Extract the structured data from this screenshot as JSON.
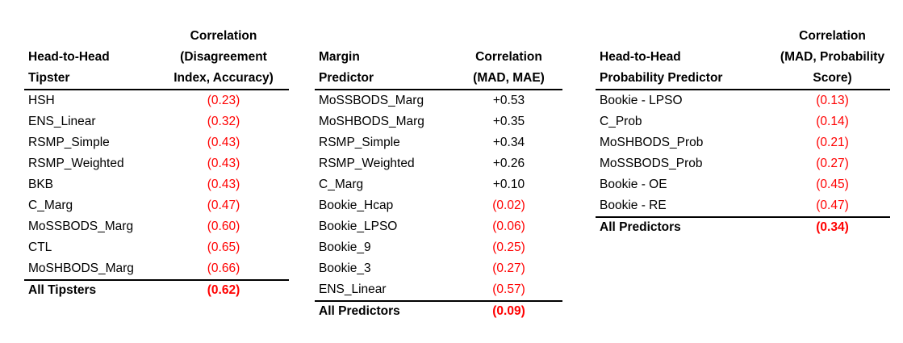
{
  "colors": {
    "text": "#000000",
    "negative_value": "#ff0000",
    "rule": "#000000",
    "background": "#ffffff"
  },
  "tables": [
    {
      "name": "head-to-head-tipster",
      "header": {
        "col1_lines": [
          "Head-to-Head",
          "Tipster"
        ],
        "col2_lines": [
          "Correlation",
          "(Disagreement",
          "Index, Accuracy)"
        ]
      },
      "rows": [
        {
          "label": "HSH",
          "value": "(0.23)",
          "red": true
        },
        {
          "label": "ENS_Linear",
          "value": "(0.32)",
          "red": true
        },
        {
          "label": "RSMP_Simple",
          "value": "(0.43)",
          "red": true
        },
        {
          "label": "RSMP_Weighted",
          "value": "(0.43)",
          "red": true
        },
        {
          "label": "BKB",
          "value": "(0.43)",
          "red": true
        },
        {
          "label": "C_Marg",
          "value": "(0.47)",
          "red": true
        },
        {
          "label": "MoSSBODS_Marg",
          "value": "(0.60)",
          "red": true
        },
        {
          "label": "CTL",
          "value": "(0.65)",
          "red": true
        },
        {
          "label": "MoSHBODS_Marg",
          "value": "(0.66)",
          "red": true
        }
      ],
      "total": {
        "label": "All Tipsters",
        "value": "(0.62)",
        "red": true
      }
    },
    {
      "name": "margin-predictor",
      "header": {
        "col1_lines": [
          "Margin",
          "Predictor"
        ],
        "col2_lines": [
          "Correlation",
          "(MAD, MAE)"
        ]
      },
      "rows": [
        {
          "label": "MoSSBODS_Marg",
          "value": "+0.53",
          "red": false
        },
        {
          "label": "MoSHBODS_Marg",
          "value": "+0.35",
          "red": false
        },
        {
          "label": "RSMP_Simple",
          "value": "+0.34",
          "red": false
        },
        {
          "label": "RSMP_Weighted",
          "value": "+0.26",
          "red": false
        },
        {
          "label": "C_Marg",
          "value": "+0.10",
          "red": false
        },
        {
          "label": "Bookie_Hcap",
          "value": "(0.02)",
          "red": true
        },
        {
          "label": "Bookie_LPSO",
          "value": "(0.06)",
          "red": true
        },
        {
          "label": "Bookie_9",
          "value": "(0.25)",
          "red": true
        },
        {
          "label": "Bookie_3",
          "value": "(0.27)",
          "red": true
        },
        {
          "label": "ENS_Linear",
          "value": "(0.57)",
          "red": true
        }
      ],
      "total": {
        "label": "All Predictors",
        "value": "(0.09)",
        "red": true
      }
    },
    {
      "name": "head-to-head-probability-predictor",
      "header": {
        "col1_lines": [
          "Head-to-Head",
          "Probability Predictor"
        ],
        "col2_lines": [
          "Correlation",
          "(MAD, Probability",
          "Score)"
        ]
      },
      "rows": [
        {
          "label": "Bookie - LPSO",
          "value": "(0.13)",
          "red": true
        },
        {
          "label": "C_Prob",
          "value": "(0.14)",
          "red": true
        },
        {
          "label": "MoSHBODS_Prob",
          "value": "(0.21)",
          "red": true
        },
        {
          "label": "MoSSBODS_Prob",
          "value": "(0.27)",
          "red": true
        },
        {
          "label": "Bookie - OE",
          "value": "(0.45)",
          "red": true
        },
        {
          "label": "Bookie - RE",
          "value": "(0.47)",
          "red": true
        }
      ],
      "total": {
        "label": "All Predictors",
        "value": "(0.34)",
        "red": true
      }
    }
  ]
}
